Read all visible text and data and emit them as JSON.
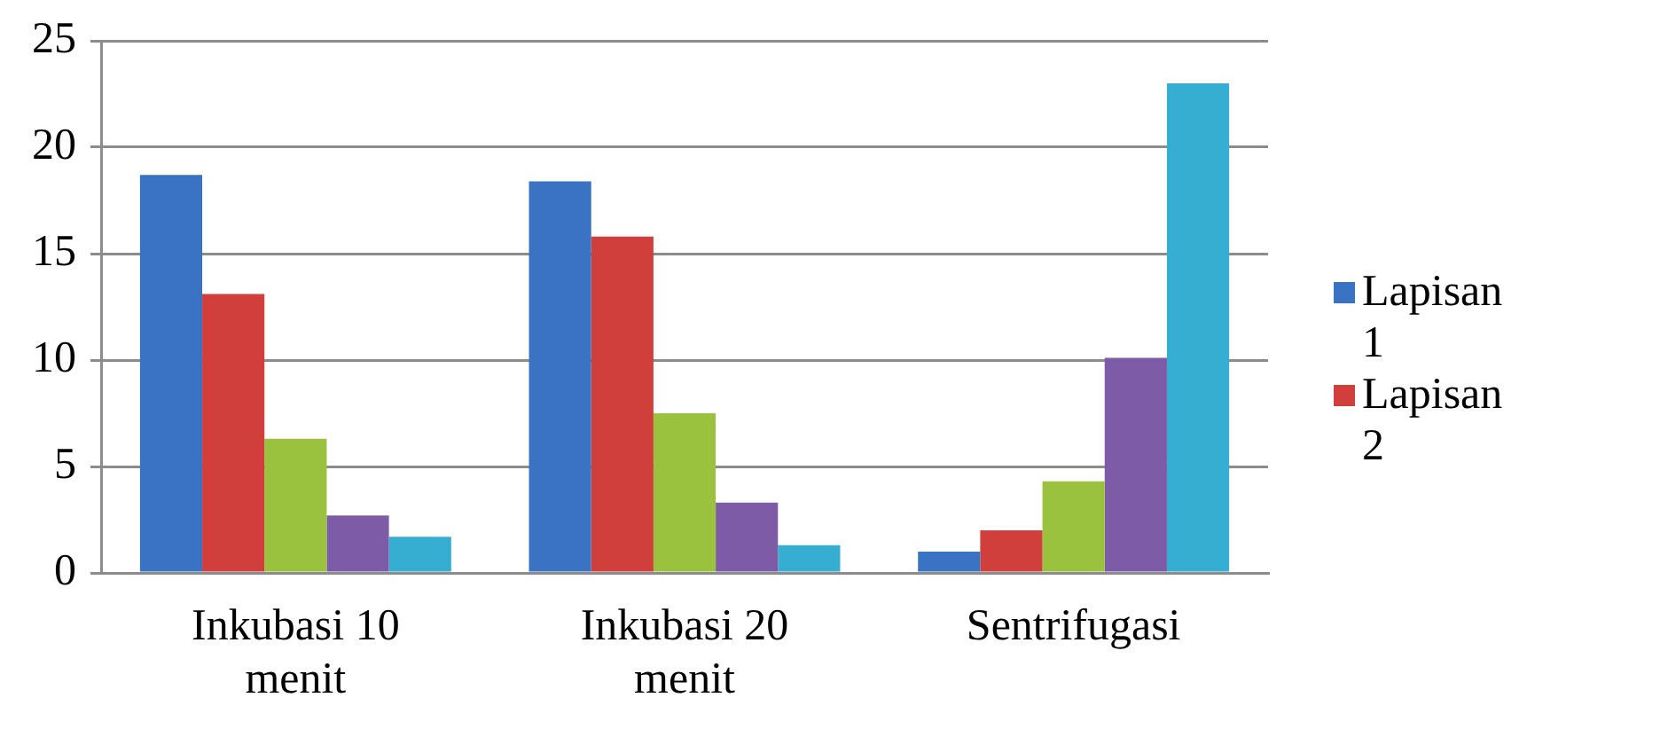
{
  "chart_data": {
    "type": "bar",
    "categories": [
      "Inkubasi 10 menit",
      "Inkubasi 20 menit",
      "Sentrifugasi"
    ],
    "series": [
      {
        "name": "Lapisan 1",
        "color": "#3a73c4",
        "values": [
          18.7,
          18.4,
          1.0
        ]
      },
      {
        "name": "Lapisan 2",
        "color": "#d13f3c",
        "values": [
          13.1,
          15.8,
          2.0
        ]
      },
      {
        "color": "#9bc23f",
        "values": [
          6.3,
          7.5,
          4.3
        ]
      },
      {
        "color": "#7d5ba6",
        "values": [
          2.7,
          3.3,
          10.1
        ]
      },
      {
        "color": "#36aed2",
        "values": [
          1.7,
          1.3,
          23.0
        ]
      }
    ],
    "ylim": [
      0,
      25
    ],
    "yticks": [
      0,
      5,
      10,
      15,
      20,
      25
    ],
    "grid": "y",
    "legend": "right"
  }
}
